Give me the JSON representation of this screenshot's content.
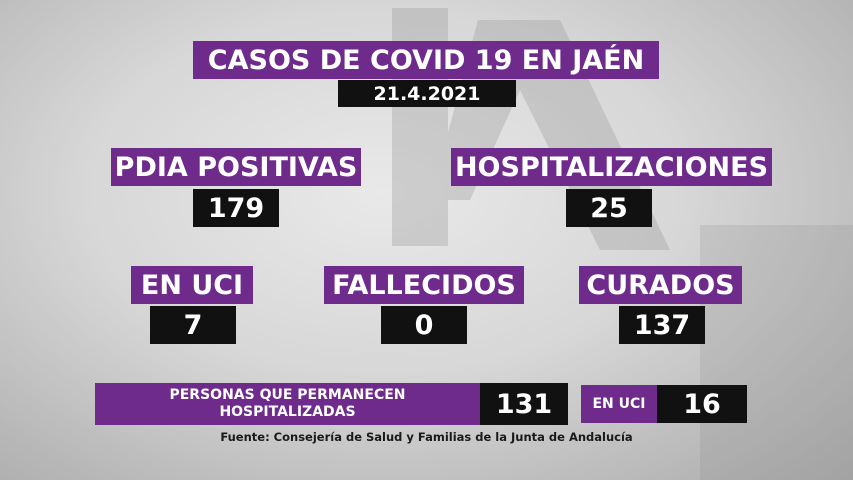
{
  "title": "CASOS DE COVID 19 EN JAÉN",
  "date": "21.4.2021",
  "stats": {
    "pdia": {
      "label": "PDIA POSITIVAS",
      "value": "179"
    },
    "hospitalizaciones": {
      "label": "HOSPITALIZACIONES",
      "value": "25"
    },
    "uci": {
      "label": "EN UCI",
      "value": "7"
    },
    "fallecidos": {
      "label": "FALLECIDOS",
      "value": "0"
    },
    "curados": {
      "label": "CURADOS",
      "value": "137"
    }
  },
  "bottom": {
    "permanecen_line1": "PERSONAS QUE PERMANECEN",
    "permanecen_line2": "HOSPITALIZADAS",
    "permanecen_value": "131",
    "uci_label": "EN UCI",
    "uci_value": "16"
  },
  "source": "Fuente: Consejería de Salud y Familias de la Junta de Andalucía",
  "colors": {
    "purple": "#6e2b8b",
    "black": "#111111"
  },
  "watermark_logo": "IA"
}
